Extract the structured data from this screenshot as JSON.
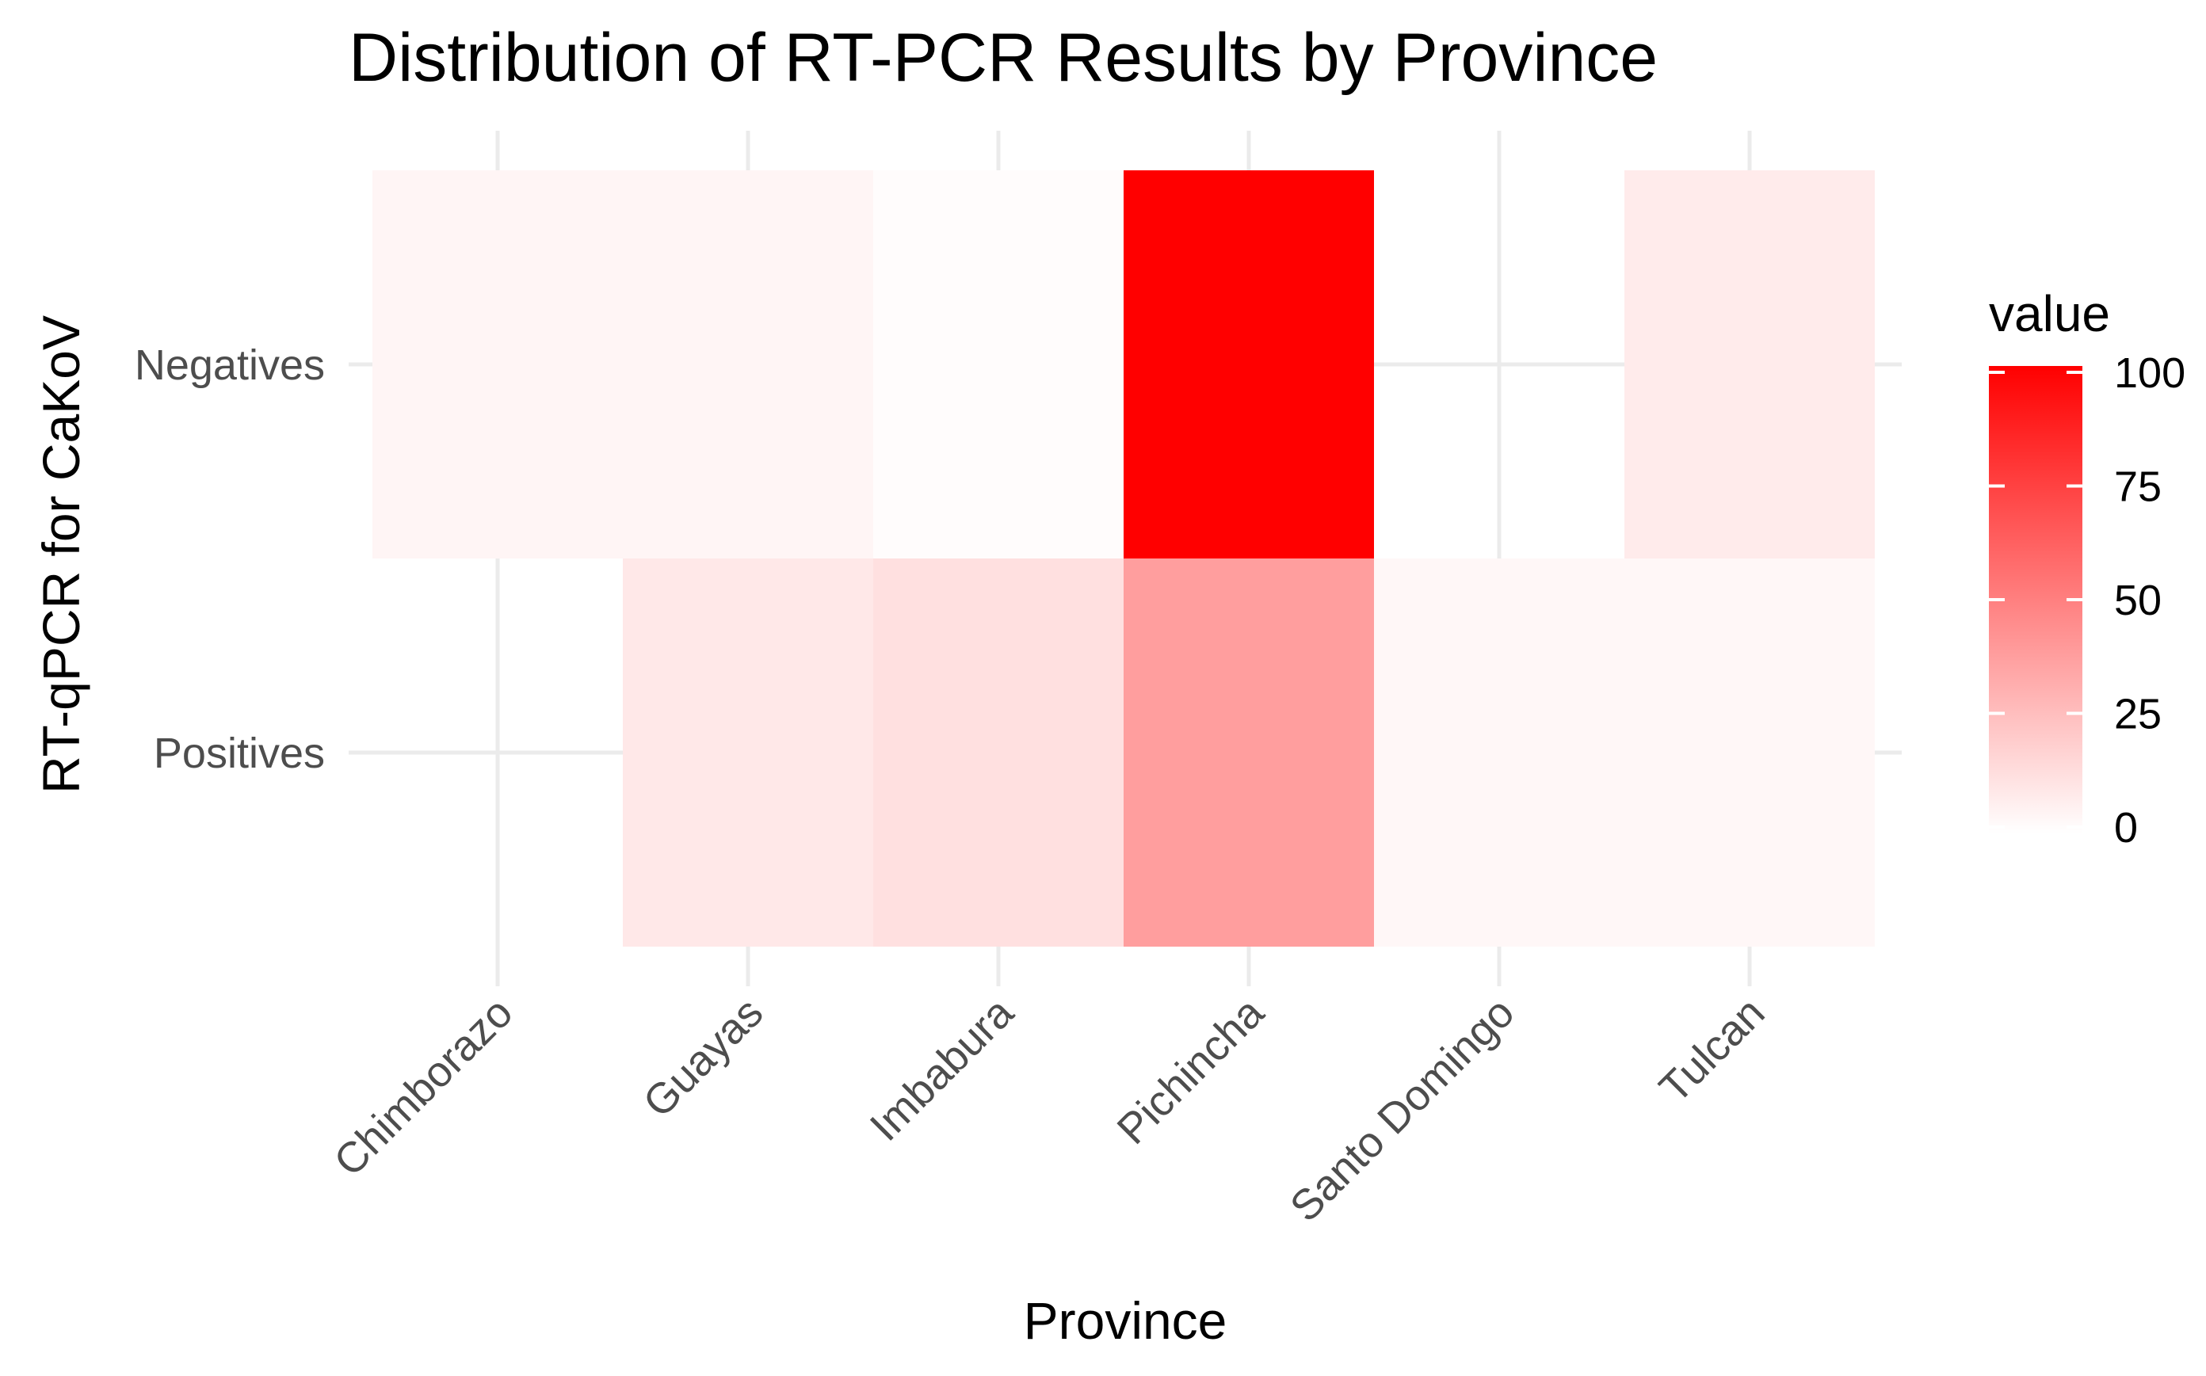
{
  "chart_data": {
    "type": "heatmap",
    "title": "Distribution of RT-PCR Results by Province",
    "xlabel": "Province",
    "ylabel": "RT-qPCR for CaKoV",
    "x_categories": [
      "Chimborazo",
      "Guayas",
      "Imbabura",
      "Pichincha",
      "Santo Domingo",
      "Tulcan"
    ],
    "y_categories": [
      "Positives",
      "Negatives"
    ],
    "cells": [
      {
        "x": "Chimborazo",
        "y": "Negatives",
        "value": 4
      },
      {
        "x": "Guayas",
        "y": "Negatives",
        "value": 4
      },
      {
        "x": "Imbabura",
        "y": "Negatives",
        "value": 1
      },
      {
        "x": "Pichincha",
        "y": "Negatives",
        "value": 100
      },
      {
        "x": "Tulcan",
        "y": "Negatives",
        "value": 8
      },
      {
        "x": "Guayas",
        "y": "Positives",
        "value": 9
      },
      {
        "x": "Imbabura",
        "y": "Positives",
        "value": 12
      },
      {
        "x": "Pichincha",
        "y": "Positives",
        "value": 38
      },
      {
        "x": "Santo Domingo",
        "y": "Positives",
        "value": 3
      },
      {
        "x": "Tulcan",
        "y": "Positives",
        "value": 3
      }
    ],
    "legend": {
      "title": "value",
      "min": 0,
      "max": 100,
      "breaks": [
        0,
        25,
        50,
        75,
        100
      ],
      "low_color": "#ffffff",
      "high_color": "#ff0000",
      "position": "right"
    },
    "grid": true
  }
}
